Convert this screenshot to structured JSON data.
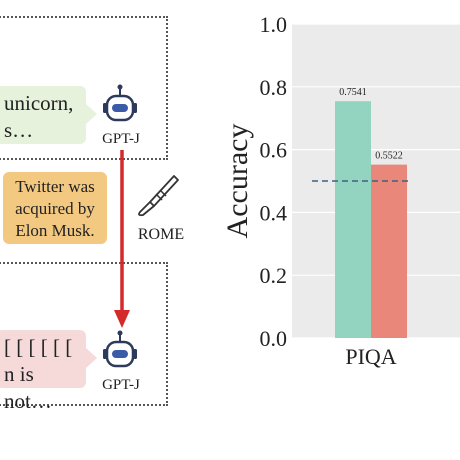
{
  "diagram": {
    "top_message": {
      "line1": "unicorn,",
      "line2": "s…"
    },
    "bottom_message": {
      "line1": "[ [ [ [ [ [",
      "line2": "n is not…"
    },
    "model_top_label": "GPT-J",
    "model_bottom_label": "GPT-J",
    "fact_text": {
      "line1": "Twitter was",
      "line2": "acquired by",
      "line3": "Elon Musk."
    },
    "edit_method_label": "ROME",
    "colors": {
      "arrow": "#d42a2a",
      "fact_box": "#f3c982",
      "bubble_top": "#e6f2dc",
      "bubble_bottom": "#f6dada",
      "robot": "#2d3a5c"
    },
    "icons": [
      "robot-icon",
      "scalpel-icon"
    ]
  },
  "chart_data": {
    "type": "bar",
    "categories": [
      "PIQA"
    ],
    "series": [
      {
        "values": [
          0.7541
        ],
        "color": "#92d4c0"
      },
      {
        "values": [
          0.5522
        ],
        "color": "#e9877b"
      }
    ],
    "data_labels": [
      "0.7541",
      "0.5522"
    ],
    "baseline": {
      "value": 0.5,
      "style": "dashed",
      "color": "#3d6180"
    },
    "ylabel": "Accuracy",
    "xlabel": "",
    "ylim": [
      0.0,
      1.0
    ],
    "yticks": [
      "0.0",
      "0.2",
      "0.4",
      "0.6",
      "0.8",
      "1.0"
    ],
    "grid": true,
    "background": "#ebebeb"
  }
}
